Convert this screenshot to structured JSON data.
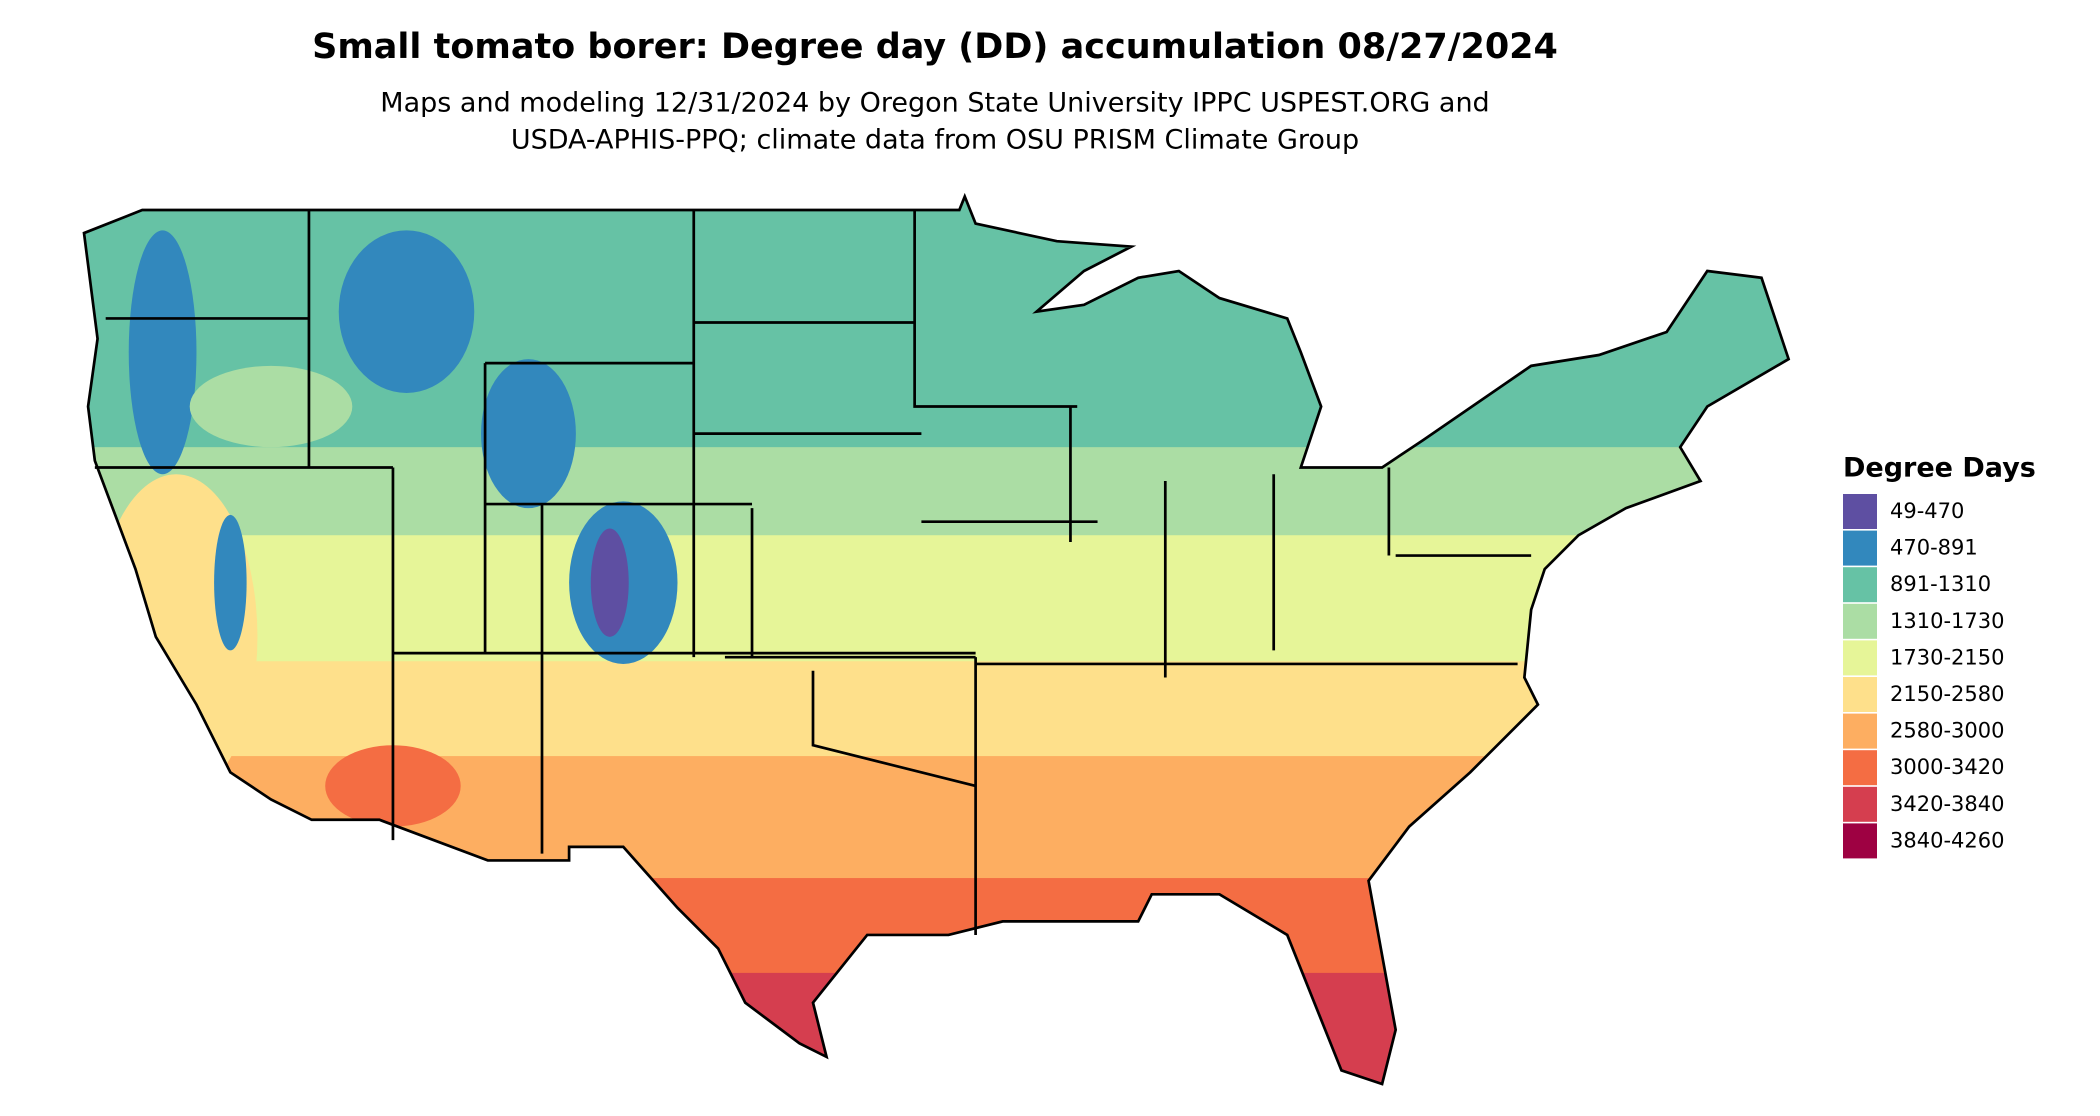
{
  "header": {
    "title": "Small tomato borer: Degree day (DD) accumulation 08/27/2024",
    "subtitle": [
      "Maps and modeling 12/31/2024 by Oregon State University IPPC USPEST.ORG and",
      "USDA-APHIS-PPQ; climate data from OSU PRISM Climate Group"
    ]
  },
  "legend": {
    "title": "Degree Days",
    "items": [
      {
        "label": "49-470",
        "color": "#5e4fa2"
      },
      {
        "label": "470-891",
        "color": "#3288bd"
      },
      {
        "label": "891-1310",
        "color": "#66c2a5"
      },
      {
        "label": "1310-1730",
        "color": "#abdda4"
      },
      {
        "label": "1730-2150",
        "color": "#e6f598"
      },
      {
        "label": "2150-2580",
        "color": "#fee08b"
      },
      {
        "label": "2580-3000",
        "color": "#fdae61"
      },
      {
        "label": "3000-3420",
        "color": "#f46d43"
      },
      {
        "label": "3420-3840",
        "color": "#d53e4f"
      },
      {
        "label": "3840-4260",
        "color": "#9e0142"
      }
    ]
  }
}
